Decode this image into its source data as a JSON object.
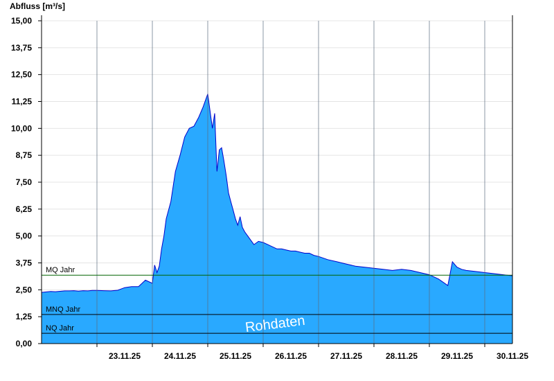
{
  "chart_data": {
    "type": "area",
    "ylabel": "Abfluss [m³/s]",
    "ylim": [
      0,
      15
    ],
    "yticks": [
      "0,00",
      "1,25",
      "2,50",
      "3,75",
      "5,00",
      "6,25",
      "7,50",
      "8,75",
      "10,00",
      "11,25",
      "12,50",
      "13,75",
      "15,00"
    ],
    "xrange": [
      "22.11.25 00:00",
      "30.11.25 12:00"
    ],
    "xticks": [
      "23.11.25",
      "24.11.25",
      "25.11.25",
      "26.11.25",
      "27.11.25",
      "28.11.25",
      "29.11.25",
      "30.11.25"
    ],
    "grid": true,
    "reference_lines": [
      {
        "label": "MQ Jahr",
        "value": 3.18,
        "color": "#006400"
      },
      {
        "label": "MNQ Jahr",
        "value": 1.35,
        "color": "#000000"
      },
      {
        "label": "NQ Jahr",
        "value": 0.48,
        "color": "#000000"
      }
    ],
    "watermark": "Rohdaten",
    "fill_color": "#29a9ff",
    "line_color": "#0000cc",
    "series": [
      {
        "x": [
          "22.11.25 00:00",
          "22.11.25 02:00",
          "22.11.25 04:00",
          "22.11.25 06:00",
          "22.11.25 08:00",
          "22.11.25 10:00",
          "22.11.25 12:00",
          "22.11.25 14:00",
          "22.11.25 16:00",
          "22.11.25 18:00",
          "22.11.25 20:00",
          "22.11.25 22:00",
          "23.11.25 00:00",
          "23.11.25 03:00",
          "23.11.25 06:00",
          "23.11.25 09:00",
          "23.11.25 12:00",
          "23.11.25 15:00",
          "23.11.25 18:00",
          "23.11.25 21:00",
          "24.11.25 00:00",
          "24.11.25 01:00",
          "24.11.25 02:00",
          "24.11.25 03:00",
          "24.11.25 04:00",
          "24.11.25 05:00",
          "24.11.25 06:00",
          "24.11.25 08:00",
          "24.11.25 10:00",
          "24.11.25 12:00",
          "24.11.25 14:00",
          "24.11.25 16:00",
          "24.11.25 18:00",
          "24.11.25 20:00",
          "24.11.25 22:00",
          "25.11.25 00:00",
          "25.11.25 02:00",
          "25.11.25 03:00",
          "25.11.25 04:00",
          "25.11.25 05:00",
          "25.11.25 06:00",
          "25.11.25 07:00",
          "25.11.25 08:00",
          "25.11.25 09:00",
          "25.11.25 10:00",
          "25.11.25 11:00",
          "25.11.25 12:00",
          "25.11.25 13:00",
          "25.11.25 14:00",
          "25.11.25 15:00",
          "25.11.25 16:00",
          "25.11.25 18:00",
          "25.11.25 20:00",
          "25.11.25 22:00",
          "26.11.25 00:00",
          "26.11.25 02:00",
          "26.11.25 04:00",
          "26.11.25 06:00",
          "26.11.25 08:00",
          "26.11.25 10:00",
          "26.11.25 12:00",
          "26.11.25 14:00",
          "26.11.25 16:00",
          "26.11.25 18:00",
          "26.11.25 20:00",
          "26.11.25 22:00",
          "27.11.25 00:00",
          "27.11.25 04:00",
          "27.11.25 08:00",
          "27.11.25 12:00",
          "27.11.25 16:00",
          "27.11.25 20:00",
          "28.11.25 00:00",
          "28.11.25 04:00",
          "28.11.25 08:00",
          "28.11.25 12:00",
          "28.11.25 16:00",
          "28.11.25 20:00",
          "29.11.25 00:00",
          "29.11.25 04:00",
          "29.11.25 08:00",
          "29.11.25 10:00",
          "29.11.25 12:00",
          "29.11.25 14:00",
          "29.11.25 16:00",
          "29.11.25 20:00",
          "30.11.25 00:00",
          "30.11.25 04:00",
          "30.11.25 08:00",
          "30.11.25 12:00"
        ],
        "values": [
          2.38,
          2.4,
          2.42,
          2.41,
          2.43,
          2.45,
          2.45,
          2.46,
          2.44,
          2.46,
          2.45,
          2.47,
          2.47,
          2.46,
          2.45,
          2.48,
          2.6,
          2.65,
          2.65,
          2.95,
          2.8,
          3.65,
          3.3,
          3.6,
          4.4,
          5.0,
          5.8,
          6.6,
          8.0,
          8.75,
          9.6,
          10.0,
          10.1,
          10.5,
          11.0,
          11.6,
          10.0,
          10.7,
          8.0,
          9.0,
          9.1,
          8.5,
          7.8,
          7.0,
          6.6,
          6.2,
          5.8,
          5.5,
          5.9,
          5.4,
          5.2,
          4.9,
          4.6,
          4.75,
          4.7,
          4.6,
          4.5,
          4.4,
          4.4,
          4.35,
          4.3,
          4.3,
          4.25,
          4.2,
          4.2,
          4.1,
          4.05,
          3.9,
          3.8,
          3.7,
          3.6,
          3.55,
          3.5,
          3.45,
          3.4,
          3.45,
          3.4,
          3.3,
          3.2,
          3.0,
          2.7,
          3.8,
          3.55,
          3.45,
          3.4,
          3.35,
          3.3,
          3.25,
          3.2,
          3.15
        ]
      }
    ]
  }
}
